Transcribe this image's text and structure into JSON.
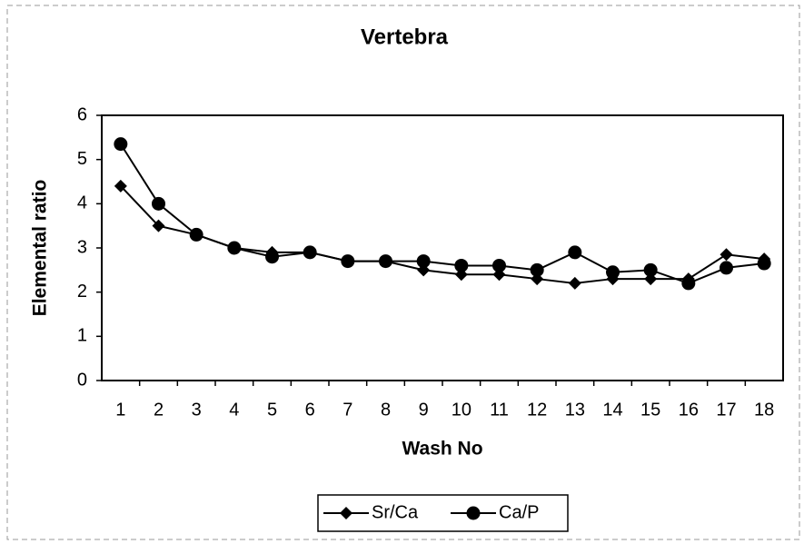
{
  "chart_data": {
    "type": "line",
    "title": "Vertebra",
    "xlabel": "Wash No",
    "ylabel": "Elemental ratio",
    "categories": [
      "1",
      "2",
      "3",
      "4",
      "5",
      "6",
      "7",
      "8",
      "9",
      "10",
      "11",
      "12",
      "13",
      "14",
      "15",
      "16",
      "17",
      "18"
    ],
    "series": [
      {
        "name": "Sr/Ca",
        "color": "#000000",
        "marker": "diamond",
        "values": [
          4.4,
          3.5,
          3.3,
          3.0,
          2.9,
          2.9,
          2.7,
          2.7,
          2.5,
          2.4,
          2.4,
          2.3,
          2.2,
          2.3,
          2.3,
          2.3,
          2.85,
          2.75
        ]
      },
      {
        "name": "Ca/P",
        "color": "#000000",
        "marker": "circle",
        "values": [
          5.35,
          4.0,
          3.3,
          3.0,
          2.8,
          2.9,
          2.7,
          2.7,
          2.7,
          2.6,
          2.6,
          2.5,
          2.9,
          2.45,
          2.5,
          2.2,
          2.55,
          2.65
        ]
      }
    ],
    "ylim": [
      0,
      6
    ],
    "yticks": [
      0,
      1,
      2,
      3,
      4,
      5,
      6
    ],
    "grid": false,
    "legend": "bottom"
  }
}
